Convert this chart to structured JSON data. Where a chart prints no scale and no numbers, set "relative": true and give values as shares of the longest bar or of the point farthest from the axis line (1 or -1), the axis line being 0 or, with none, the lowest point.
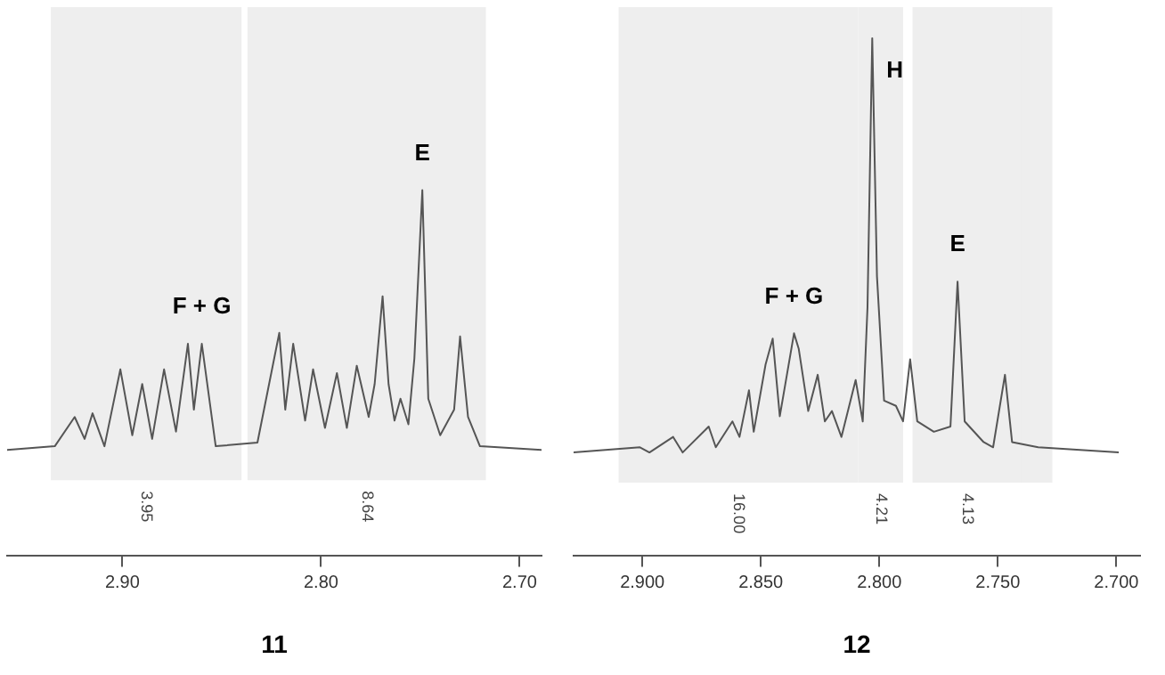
{
  "chart_data": [
    {
      "type": "line",
      "title": "11",
      "relative": true,
      "color": "#555555",
      "marker": "none",
      "legend": false,
      "grid": false,
      "x": [
        2.958,
        2.934,
        2.924,
        2.919,
        2.915,
        2.909,
        2.901,
        2.895,
        2.89,
        2.885,
        2.879,
        2.873,
        2.867,
        2.864,
        2.86,
        2.853,
        2.832,
        2.821,
        2.818,
        2.814,
        2.808,
        2.804,
        2.798,
        2.792,
        2.787,
        2.782,
        2.776,
        2.773,
        2.769,
        2.766,
        2.763,
        2.76,
        2.756,
        2.753,
        2.749,
        2.746,
        2.74,
        2.733,
        2.73,
        2.726,
        2.72,
        2.689
      ],
      "values": [
        0.29,
        0.3,
        0.38,
        0.32,
        0.39,
        0.3,
        0.51,
        0.33,
        0.47,
        0.32,
        0.51,
        0.34,
        0.58,
        0.4,
        0.58,
        0.3,
        0.31,
        0.61,
        0.4,
        0.58,
        0.37,
        0.51,
        0.35,
        0.5,
        0.35,
        0.52,
        0.38,
        0.47,
        0.71,
        0.47,
        0.37,
        0.43,
        0.36,
        0.54,
        1,
        0.43,
        0.33,
        0.4,
        0.6,
        0.38,
        0.3,
        0.29
      ],
      "xlim": [
        2.958,
        2.689
      ],
      "xticks": [
        {
          "value": 2.9,
          "label": "2.90"
        },
        {
          "value": 2.8,
          "label": "2.80"
        },
        {
          "value": 2.7,
          "label": "2.70"
        }
      ],
      "bands": [
        {
          "axis": "x",
          "from": 2.936,
          "to": 2.84,
          "label": "3.95",
          "color": "#eeeeee"
        },
        {
          "axis": "x",
          "from": 2.837,
          "to": 2.717,
          "label": "8.64",
          "color": "#eeeeee"
        }
      ],
      "annotations": [
        {
          "text": "F + G",
          "x": 2.86,
          "y": 0.58
        },
        {
          "text": "E",
          "x": 2.749,
          "y": 1
        }
      ]
    },
    {
      "type": "line",
      "title": "12",
      "relative": true,
      "color": "#555555",
      "marker": "none",
      "legend": false,
      "grid": false,
      "x": [
        2.929,
        2.901,
        2.897,
        2.887,
        2.883,
        2.872,
        2.869,
        2.862,
        2.859,
        2.855,
        2.853,
        2.848,
        2.845,
        2.842,
        2.836,
        2.834,
        2.83,
        2.826,
        2.823,
        2.82,
        2.816,
        2.81,
        2.807,
        2.805,
        2.803,
        2.801,
        2.798,
        2.793,
        2.79,
        2.787,
        2.784,
        2.777,
        2.77,
        2.767,
        2.764,
        2.756,
        2.752,
        2.747,
        2.744,
        2.733,
        2.699
      ],
      "values": [
        0.2,
        0.21,
        0.2,
        0.23,
        0.2,
        0.25,
        0.21,
        0.26,
        0.23,
        0.32,
        0.24,
        0.37,
        0.42,
        0.27,
        0.43,
        0.4,
        0.28,
        0.35,
        0.26,
        0.28,
        0.23,
        0.34,
        0.26,
        0.48,
        1,
        0.54,
        0.3,
        0.29,
        0.26,
        0.38,
        0.26,
        0.24,
        0.25,
        0.53,
        0.26,
        0.22,
        0.21,
        0.35,
        0.22,
        0.21,
        0.2
      ],
      "xlim": [
        2.929,
        2.69
      ],
      "xticks": [
        {
          "value": 2.9,
          "label": "2.900"
        },
        {
          "value": 2.85,
          "label": "2.850"
        },
        {
          "value": 2.8,
          "label": "2.800"
        },
        {
          "value": 2.75,
          "label": "2.750"
        },
        {
          "value": 2.7,
          "label": "2.700"
        }
      ],
      "bands": [
        {
          "axis": "x",
          "from": 2.91,
          "to": 2.809,
          "label": "16.00",
          "color": "#eeeeee"
        },
        {
          "axis": "x",
          "from": 2.809,
          "to": 2.79,
          "label": "4.21",
          "color": "#eeeeee"
        },
        {
          "axis": "x",
          "from": 2.786,
          "to": 2.74,
          "label": "4.13",
          "color": "#eeeeee"
        },
        {
          "axis": "x",
          "from": 2.74,
          "to": 2.727,
          "color": "#eeeeee"
        }
      ],
      "annotations": [
        {
          "text": "F + G",
          "x": 2.836,
          "y": 0.43
        },
        {
          "text": "H",
          "x": 2.803,
          "y": 1
        },
        {
          "text": "E",
          "x": 2.767,
          "y": 0.53
        }
      ]
    }
  ]
}
